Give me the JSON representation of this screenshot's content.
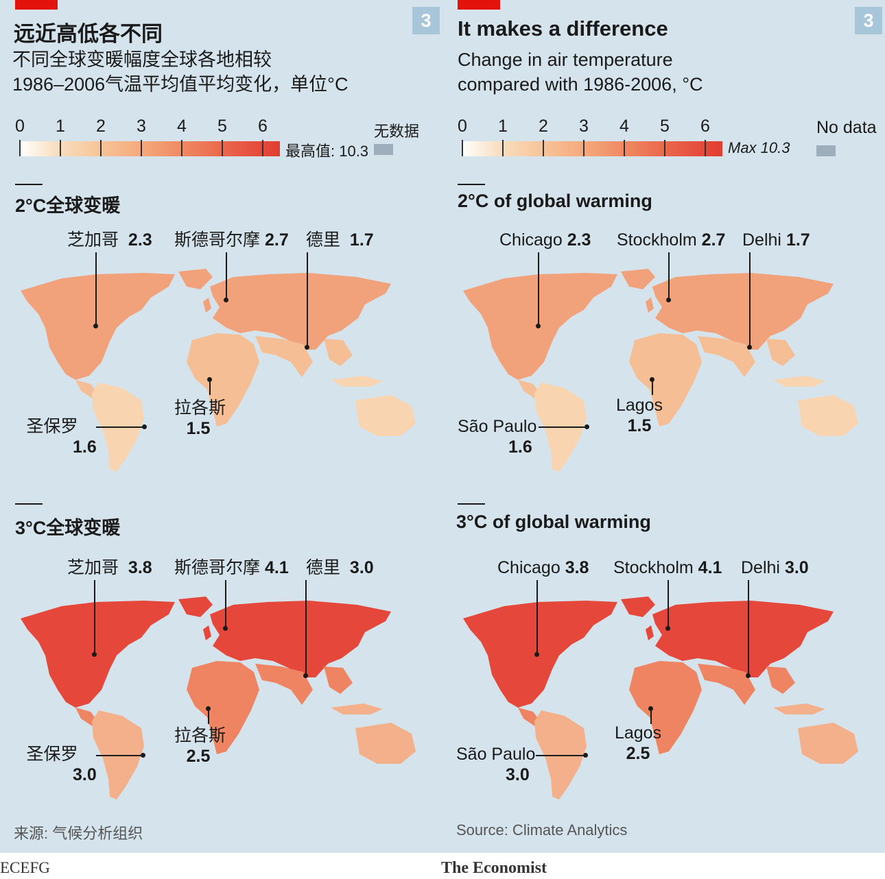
{
  "panels": [
    {
      "lang": "zh",
      "badge": "3",
      "title": "远近高低各不同",
      "subtitle_line1": "不同全球变暖幅度全球各地相较",
      "subtitle_line2": "1986–2006气温平均值平均变化，单位°C",
      "legend": {
        "ticks": [
          "0",
          "1",
          "2",
          "3",
          "4",
          "5",
          "6"
        ],
        "max_label": "最高值: 10.3",
        "no_data": "无数据"
      },
      "sections": [
        {
          "title": "2°C全球变暖",
          "cities": [
            {
              "name": "芝加哥",
              "value": "2.3"
            },
            {
              "name": "斯德哥尔摩",
              "value": "2.7"
            },
            {
              "name": "德里",
              "value": "1.7"
            },
            {
              "name": "拉各斯",
              "value": "1.5"
            },
            {
              "name": "圣保罗",
              "value": "1.6"
            }
          ]
        },
        {
          "title": "3°C全球变暖",
          "cities": [
            {
              "name": "芝加哥",
              "value": "3.8"
            },
            {
              "name": "斯德哥尔摩",
              "value": "4.1"
            },
            {
              "name": "德里",
              "value": "3.0"
            },
            {
              "name": "拉各斯",
              "value": "2.5"
            },
            {
              "name": "圣保罗",
              "value": "3.0"
            }
          ]
        }
      ],
      "source": "来源: 气候分析组织"
    },
    {
      "lang": "en",
      "badge": "3",
      "title": "It makes a difference",
      "subtitle_line1": "Change in air temperature",
      "subtitle_line2": "compared with 1986-2006, °C",
      "legend": {
        "ticks": [
          "0",
          "1",
          "2",
          "3",
          "4",
          "5",
          "6"
        ],
        "max_label": "Max 10.3",
        "no_data": "No data"
      },
      "sections": [
        {
          "title": "2°C of global warming",
          "cities": [
            {
              "name": "Chicago",
              "value": "2.3"
            },
            {
              "name": "Stockholm",
              "value": "2.7"
            },
            {
              "name": "Delhi",
              "value": "1.7"
            },
            {
              "name": "Lagos",
              "value": "1.5"
            },
            {
              "name": "São Paulo",
              "value": "1.6"
            }
          ]
        },
        {
          "title": "3°C of global warming",
          "cities": [
            {
              "name": "Chicago",
              "value": "3.8"
            },
            {
              "name": "Stockholm",
              "value": "4.1"
            },
            {
              "name": "Delhi",
              "value": "3.0"
            },
            {
              "name": "Lagos",
              "value": "2.5"
            },
            {
              "name": "São Paulo",
              "value": "3.0"
            }
          ]
        }
      ],
      "source": "Source: Climate Analytics"
    }
  ],
  "map_colors": {
    "warming_2c": {
      "north": "#f2a27a",
      "mid": "#f6be95",
      "south": "#f9d4b0"
    },
    "warming_3c": {
      "north": "#e5483a",
      "mid": "#ee8461",
      "south": "#f4b08a"
    },
    "ocean": "#d5e4ec",
    "accent": "#e3120b"
  },
  "footer": {
    "left": "ECEFG",
    "right": "The Economist"
  }
}
